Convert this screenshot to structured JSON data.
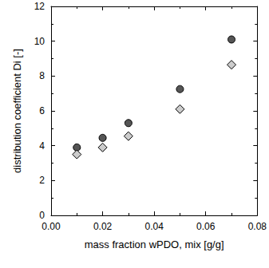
{
  "chart_data": {
    "type": "scatter",
    "x_label": "mass fraction wPDO, mix [g/g]",
    "y_label": "distribution coefficient Di [-]",
    "x": [
      0.01,
      0.02,
      0.03,
      0.05,
      0.07
    ],
    "series": [
      {
        "color": "#555555",
        "marker": "circle",
        "values": [
          3.9,
          4.45,
          5.3,
          7.25,
          10.1
        ]
      },
      {
        "color": "#cccccc",
        "marker": "diamond",
        "values": [
          3.5,
          3.9,
          4.55,
          6.1,
          8.65
        ]
      }
    ],
    "xlim": [
      0,
      0.08
    ],
    "xticks": [
      {
        "value": 0,
        "label": "0.00"
      },
      {
        "value": 0.02,
        "label": "0.02"
      },
      {
        "value": 0.04,
        "label": "0.04"
      },
      {
        "value": 0.06,
        "label": "0.06"
      },
      {
        "value": 0.08,
        "label": "0.08"
      }
    ],
    "ylim": [
      0,
      12
    ],
    "yticks": [
      0,
      2,
      4,
      6,
      8,
      10,
      12
    ],
    "grid": false
  }
}
